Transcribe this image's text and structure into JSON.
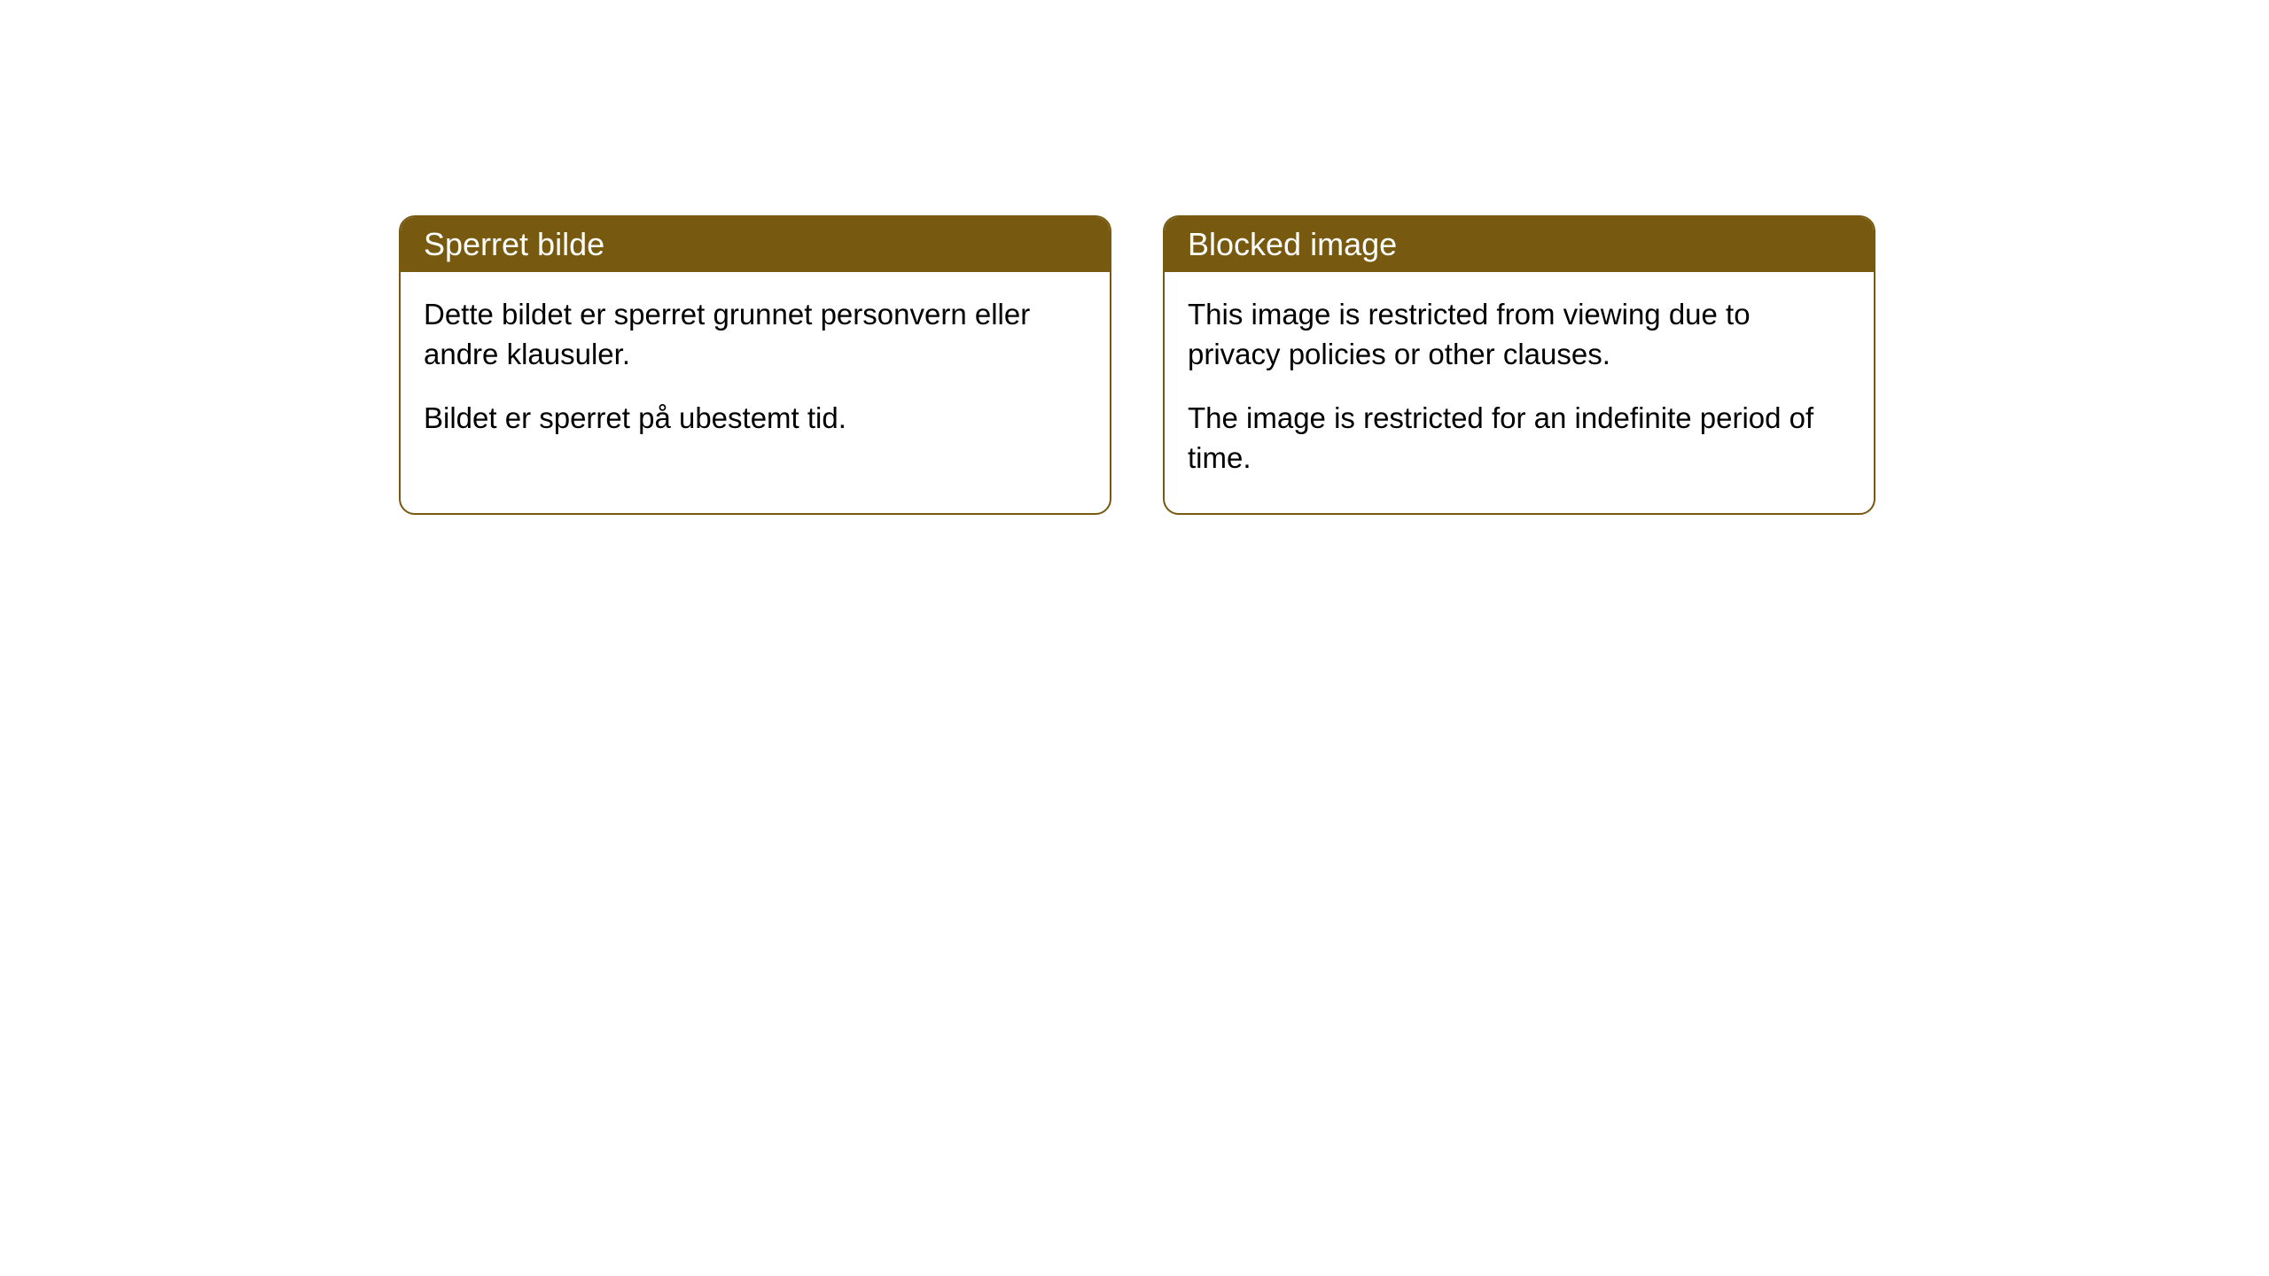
{
  "cards": [
    {
      "title": "Sperret bilde",
      "body_p1": "Dette bildet er sperret grunnet personvern eller andre klausuler.",
      "body_p2": "Bildet er sperret på ubestemt tid."
    },
    {
      "title": "Blocked image",
      "body_p1": "This image is restricted from viewing due to privacy policies or other clauses.",
      "body_p2": "The image is restricted for an indefinite period of time."
    }
  ],
  "style": {
    "header_bg": "#775a10",
    "header_text": "#ffffff",
    "border_color": "#775a10",
    "body_text": "#000000",
    "background": "#ffffff",
    "border_radius": 18,
    "title_fontsize": 36,
    "body_fontsize": 33
  }
}
